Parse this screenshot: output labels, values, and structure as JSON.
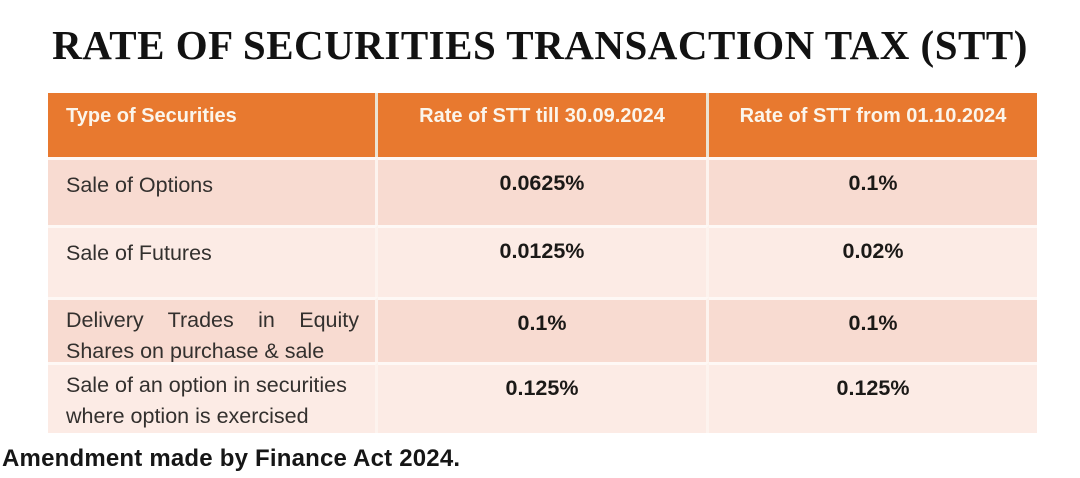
{
  "page": {
    "title": "RATE OF SECURITIES TRANSACTION TAX (STT)",
    "footnote": "Amendment made by Finance Act 2024."
  },
  "colors": {
    "header_bg": "#e8792f",
    "header_text": "#fbf5eb",
    "row_dark_bg": "#f8dbd1",
    "row_light_bg": "#fcebe5",
    "title_text": "#121212",
    "value_text": "#1b1917"
  },
  "table": {
    "headers": [
      "Type of Securities",
      "Rate of STT till 30.09.2024",
      "Rate of STT from 01.10.2024"
    ],
    "rows": [
      {
        "type_lines": [
          "Sale of Options"
        ],
        "rate_till": "0.0625%",
        "rate_from": "0.1%"
      },
      {
        "type_lines": [
          "Sale of Futures"
        ],
        "rate_till": "0.0125%",
        "rate_from": "0.02%"
      },
      {
        "type_lines": [
          "Delivery Trades in Equity",
          "Shares on purchase & sale"
        ],
        "rate_till": "0.1%",
        "rate_from": "0.1%"
      },
      {
        "type_lines": [
          "Sale of an option in securities",
          "where option is exercised"
        ],
        "rate_till": "0.125%",
        "rate_from": "0.125%"
      }
    ]
  }
}
